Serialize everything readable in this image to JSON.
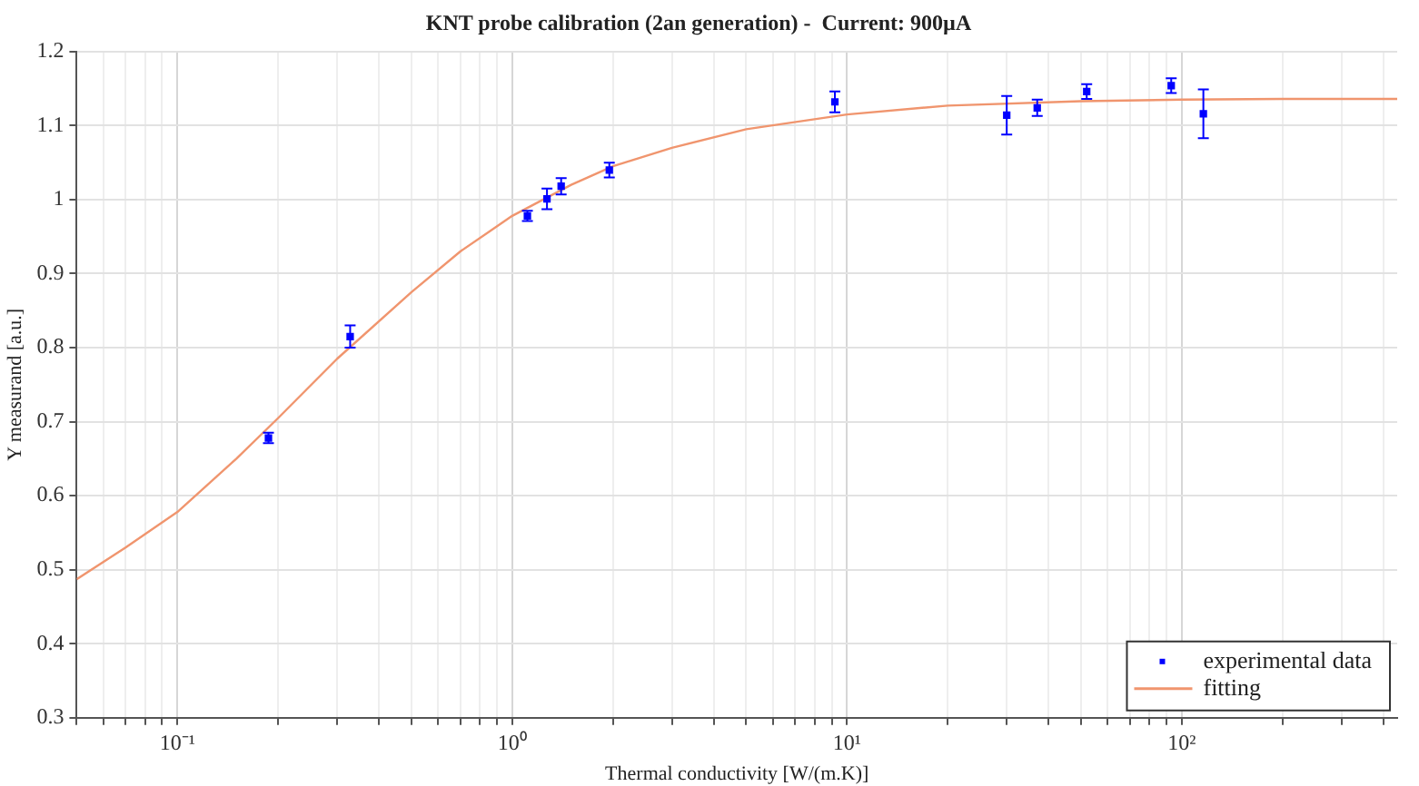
{
  "chart_data": {
    "type": "scatter",
    "title": "KNT probe calibration (2an generation) -  Current: 900µA",
    "xlabel": "Thermal conductivity [W/(m.K)]",
    "ylabel": "Y measurand [a.u.]",
    "log": "x",
    "grid": true,
    "legend": "bottom right",
    "xlim": [
      0.05,
      440
    ],
    "ylim": [
      0.3,
      1.2
    ],
    "xticks": [
      {
        "value": 0.05,
        "label": null
      },
      {
        "value": 0.06,
        "label": null
      },
      {
        "value": 0.07,
        "label": null
      },
      {
        "value": 0.08,
        "label": null
      },
      {
        "value": 0.09,
        "label": null
      },
      {
        "value": 0.1,
        "label": "10⁻¹"
      },
      {
        "value": 0.2,
        "label": null
      },
      {
        "value": 0.3,
        "label": null
      },
      {
        "value": 0.4,
        "label": null
      },
      {
        "value": 0.5,
        "label": null
      },
      {
        "value": 0.6,
        "label": null
      },
      {
        "value": 0.7,
        "label": null
      },
      {
        "value": 0.8,
        "label": null
      },
      {
        "value": 0.9,
        "label": null
      },
      {
        "value": 1,
        "label": "10⁰"
      },
      {
        "value": 2,
        "label": null
      },
      {
        "value": 3,
        "label": null
      },
      {
        "value": 4,
        "label": null
      },
      {
        "value": 5,
        "label": null
      },
      {
        "value": 6,
        "label": null
      },
      {
        "value": 7,
        "label": null
      },
      {
        "value": 8,
        "label": null
      },
      {
        "value": 9,
        "label": null
      },
      {
        "value": 10,
        "label": "10¹"
      },
      {
        "value": 20,
        "label": null
      },
      {
        "value": 30,
        "label": null
      },
      {
        "value": 40,
        "label": null
      },
      {
        "value": 50,
        "label": null
      },
      {
        "value": 60,
        "label": null
      },
      {
        "value": 70,
        "label": null
      },
      {
        "value": 80,
        "label": null
      },
      {
        "value": 90,
        "label": null
      },
      {
        "value": 100,
        "label": "10²"
      },
      {
        "value": 200,
        "label": null
      },
      {
        "value": 300,
        "label": null
      },
      {
        "value": 400,
        "label": null
      }
    ],
    "yticks": [
      0.3,
      0.4,
      0.5,
      0.6,
      0.7,
      0.8,
      0.9,
      1,
      1.1,
      1.2
    ],
    "series": [
      {
        "name": "experimental data",
        "color": "#0000ff",
        "marker": "square",
        "x": [
          0.187,
          0.328,
          1.11,
          1.27,
          1.4,
          1.95,
          9.2,
          30,
          37,
          52,
          93,
          116
        ],
        "values": [
          0.678,
          0.815,
          0.978,
          1.001,
          1.018,
          1.04,
          1.132,
          1.114,
          1.124,
          1.146,
          1.154,
          1.116
        ],
        "errors": [
          0.007,
          0.015,
          0.007,
          0.014,
          0.011,
          0.01,
          0.014,
          0.026,
          0.011,
          0.01,
          0.01,
          0.033
        ]
      },
      {
        "name": "fitting",
        "type": "line",
        "color": "#f0956e",
        "marker": "none",
        "line_style": "solid",
        "x": [
          0.05,
          0.07,
          0.1,
          0.15,
          0.2,
          0.3,
          0.5,
          0.7,
          1,
          1.5,
          2,
          3,
          5,
          10,
          20,
          50,
          100,
          200,
          440
        ],
        "values": [
          0.487,
          0.53,
          0.578,
          0.65,
          0.705,
          0.785,
          0.875,
          0.93,
          0.978,
          1.02,
          1.045,
          1.07,
          1.095,
          1.115,
          1.127,
          1.133,
          1.135,
          1.136,
          1.136
        ]
      }
    ]
  }
}
